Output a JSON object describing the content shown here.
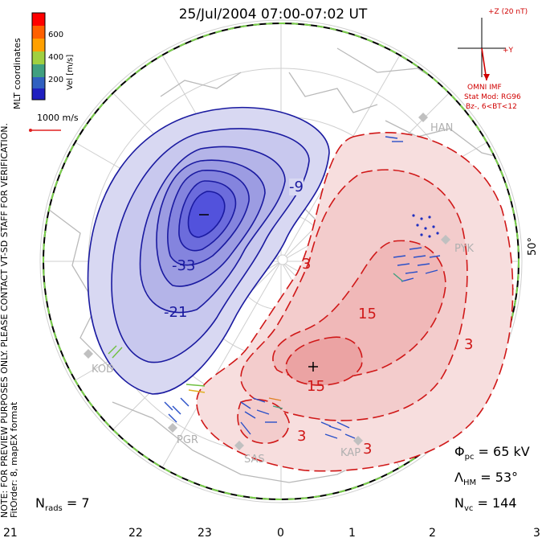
{
  "title": "25/Jul/2004 07:00-07:02 UT",
  "colorbar": {
    "unit_label": "Vel [m/s]",
    "ticks": [
      "600",
      "400",
      "200"
    ],
    "colors": [
      "#ff0000",
      "#ff8000",
      "#ffd000",
      "#80d040",
      "#40a080",
      "#3060c0",
      "#2020c0"
    ]
  },
  "coordinates_label": "MLT coordinates",
  "side_note_1": "NOTE: FOR PREVIEW PURPOSES ONLY. PLEASE CONTACT VT-SD STAFF FOR VERIFICATION.",
  "side_note_2": "FitOrder: 8, mapEX format",
  "reference_vector_label": "1000 m/s",
  "imf": {
    "z_label": "+Z (20 nT)",
    "y_label": "+Y",
    "source": "OMNI IMF",
    "model": "Stat Mod: RG96",
    "condition": "Bz-, 6<BT<12",
    "color": "#d00000"
  },
  "latitude_label": "50°",
  "stations": [
    "HAN",
    "PYK",
    "KAP",
    "SAS",
    "PGR",
    "KOD"
  ],
  "contours": {
    "negative_labels": [
      "-9",
      "-33",
      "-21"
    ],
    "positive_labels": [
      "3",
      "15",
      "15",
      "3",
      "3",
      "3"
    ],
    "min_marker": "−",
    "max_marker": "+",
    "negative_color": "#1a1aa0",
    "positive_color": "#d01818"
  },
  "stats": {
    "phi_sym": "Φ",
    "phi_sub": "pc",
    "phi_val": "= 65 kV",
    "lambda_sym": "Λ",
    "lambda_sub": "HM",
    "lambda_val": "= 53°",
    "nvc_sym": "N",
    "nvc_sub": "vc",
    "nvc_val": "= 144",
    "nrads_sym": "N",
    "nrads_sub": "rads",
    "nrads_val": "= 7"
  },
  "mlt_ticks": [
    "21",
    "22",
    "23",
    "0",
    "1",
    "2",
    "3"
  ]
}
